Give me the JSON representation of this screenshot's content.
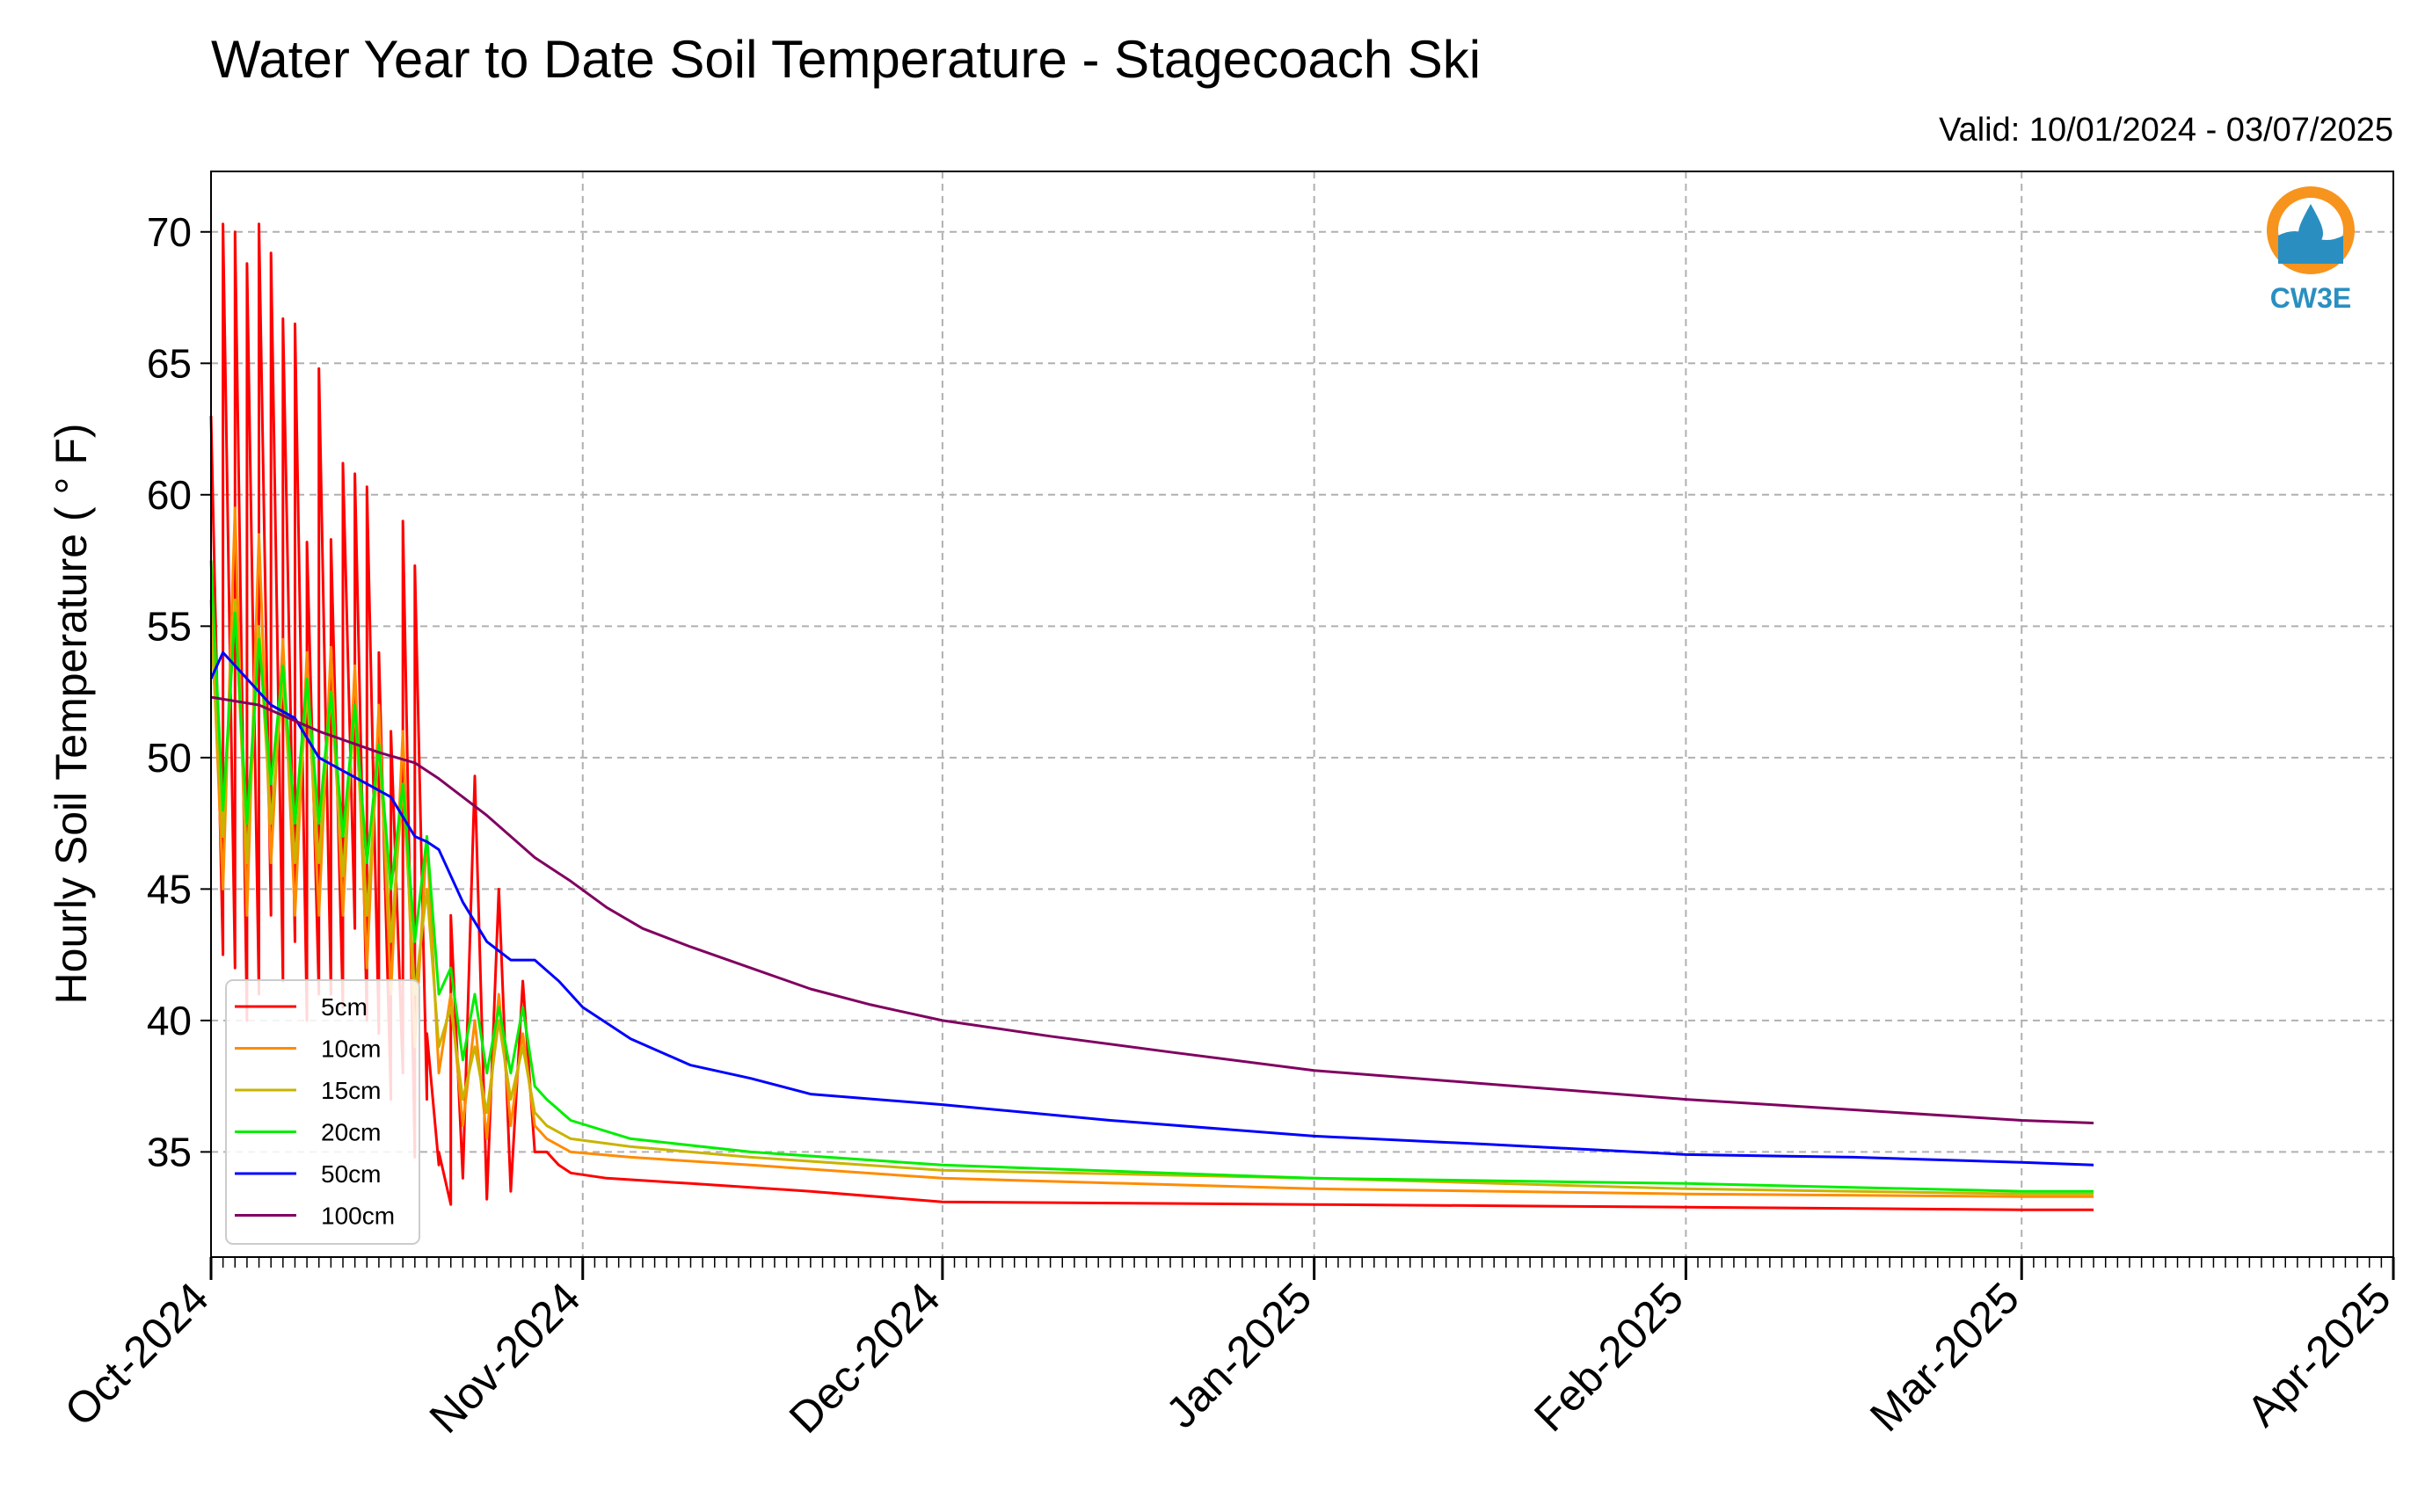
{
  "chart_data": {
    "type": "line",
    "title": "Water Year to Date Soil Temperature - Stagecoach Ski",
    "subtitle": "Valid: 10/01/2024 - 03/07/2025",
    "xlabel": "",
    "ylabel": "Hourly Soil Temperature ( ° F)",
    "xlim": [
      "2024-10-01",
      "2025-04-01"
    ],
    "ylim": [
      31,
      72.3
    ],
    "x_ticks": [
      "Oct-2024",
      "Nov-2024",
      "Dec-2024",
      "Jan-2025",
      "Feb-2025",
      "Mar-2025",
      "Apr-2025"
    ],
    "y_ticks": [
      35,
      40,
      45,
      50,
      55,
      60,
      65,
      70
    ],
    "grid": true,
    "legend_position": "lower-left",
    "series": [
      {
        "name": "5cm",
        "color": "#ff0000",
        "x": [
          "2024-10-01",
          "2024-10-02",
          "2024-10-02",
          "2024-10-03",
          "2024-10-03",
          "2024-10-04",
          "2024-10-04",
          "2024-10-05",
          "2024-10-05",
          "2024-10-06",
          "2024-10-06",
          "2024-10-07",
          "2024-10-07",
          "2024-10-08",
          "2024-10-08",
          "2024-10-09",
          "2024-10-09",
          "2024-10-10",
          "2024-10-10",
          "2024-10-11",
          "2024-10-11",
          "2024-10-12",
          "2024-10-12",
          "2024-10-13",
          "2024-10-13",
          "2024-10-14",
          "2024-10-14",
          "2024-10-15",
          "2024-10-15",
          "2024-10-16",
          "2024-10-16",
          "2024-10-17",
          "2024-10-17",
          "2024-10-18",
          "2024-10-18",
          "2024-10-19",
          "2024-10-19",
          "2024-10-20",
          "2024-10-20",
          "2024-10-21",
          "2024-10-21",
          "2024-10-22",
          "2024-10-23",
          "2024-10-24",
          "2024-10-25",
          "2024-10-26",
          "2024-10-27",
          "2024-10-28",
          "2024-10-29",
          "2024-10-30",
          "2024-10-31",
          "2024-11-03",
          "2024-11-10",
          "2024-11-20",
          "2024-12-01",
          "2025-01-01",
          "2025-02-01",
          "2025-03-01",
          "2025-03-07"
        ],
        "values": [
          63.0,
          42.5,
          70.3,
          42.0,
          70.0,
          40.0,
          68.8,
          41.0,
          70.3,
          44.0,
          69.2,
          41.5,
          66.7,
          43.0,
          66.5,
          40.0,
          58.2,
          41.0,
          64.8,
          41.0,
          58.3,
          40.5,
          61.2,
          43.5,
          60.8,
          40.0,
          60.3,
          39.5,
          54.0,
          37.0,
          51.0,
          38.0,
          59.0,
          34.8,
          57.3,
          37.0,
          39.5,
          34.5,
          35.0,
          33.0,
          44.0,
          34.0,
          49.3,
          33.2,
          45.0,
          33.5,
          41.5,
          35.0,
          35.0,
          34.5,
          34.2,
          34.0,
          33.8,
          33.5,
          33.1,
          33.0,
          32.9,
          32.8,
          32.8
        ]
      },
      {
        "name": "10cm",
        "color": "#ff8c00",
        "x": [
          "2024-10-01",
          "2024-10-02",
          "2024-10-03",
          "2024-10-04",
          "2024-10-05",
          "2024-10-06",
          "2024-10-07",
          "2024-10-08",
          "2024-10-09",
          "2024-10-10",
          "2024-10-11",
          "2024-10-12",
          "2024-10-13",
          "2024-10-14",
          "2024-10-15",
          "2024-10-16",
          "2024-10-17",
          "2024-10-18",
          "2024-10-19",
          "2024-10-20",
          "2024-10-21",
          "2024-10-22",
          "2024-10-23",
          "2024-10-24",
          "2024-10-25",
          "2024-10-26",
          "2024-10-27",
          "2024-10-28",
          "2024-10-29",
          "2024-10-31",
          "2024-11-05",
          "2024-11-15",
          "2024-12-01",
          "2025-01-01",
          "2025-02-01",
          "2025-03-01",
          "2025-03-07"
        ],
        "values": [
          56.0,
          45.0,
          59.5,
          44.0,
          58.5,
          46.0,
          54.5,
          44.0,
          54.0,
          44.0,
          54.2,
          44.0,
          53.5,
          42.0,
          52.0,
          41.0,
          51.0,
          39.0,
          47.0,
          38.0,
          41.0,
          36.0,
          40.0,
          35.5,
          41.0,
          36.0,
          39.5,
          36.0,
          35.5,
          35.0,
          34.8,
          34.5,
          34.0,
          33.6,
          33.4,
          33.3,
          33.3
        ]
      },
      {
        "name": "15cm",
        "color": "#c8b400",
        "x": [
          "2024-10-01",
          "2024-10-02",
          "2024-10-03",
          "2024-10-04",
          "2024-10-05",
          "2024-10-06",
          "2024-10-07",
          "2024-10-08",
          "2024-10-09",
          "2024-10-10",
          "2024-10-11",
          "2024-10-12",
          "2024-10-13",
          "2024-10-14",
          "2024-10-15",
          "2024-10-16",
          "2024-10-17",
          "2024-10-18",
          "2024-10-19",
          "2024-10-20",
          "2024-10-21",
          "2024-10-22",
          "2024-10-23",
          "2024-10-24",
          "2024-10-25",
          "2024-10-26",
          "2024-10-27",
          "2024-10-28",
          "2024-10-29",
          "2024-10-31",
          "2024-11-05",
          "2024-11-15",
          "2024-12-01",
          "2025-01-01",
          "2025-02-01",
          "2025-03-01",
          "2025-03-07"
        ],
        "values": [
          55.0,
          47.0,
          56.0,
          46.0,
          55.0,
          47.5,
          53.0,
          46.0,
          52.5,
          46.0,
          52.5,
          45.5,
          52.0,
          44.0,
          50.5,
          43.0,
          49.0,
          41.0,
          45.0,
          39.0,
          40.5,
          37.0,
          39.0,
          36.5,
          40.0,
          37.0,
          39.0,
          36.5,
          36.0,
          35.5,
          35.2,
          34.8,
          34.3,
          34.0,
          33.6,
          33.4,
          33.4
        ]
      },
      {
        "name": "20cm",
        "color": "#00ee00",
        "x": [
          "2024-10-01",
          "2024-10-02",
          "2024-10-03",
          "2024-10-04",
          "2024-10-05",
          "2024-10-06",
          "2024-10-07",
          "2024-10-08",
          "2024-10-09",
          "2024-10-10",
          "2024-10-11",
          "2024-10-12",
          "2024-10-13",
          "2024-10-14",
          "2024-10-15",
          "2024-10-16",
          "2024-10-17",
          "2024-10-18",
          "2024-10-19",
          "2024-10-20",
          "2024-10-21",
          "2024-10-22",
          "2024-10-23",
          "2024-10-24",
          "2024-10-25",
          "2024-10-26",
          "2024-10-27",
          "2024-10-28",
          "2024-10-29",
          "2024-10-31",
          "2024-11-05",
          "2024-11-15",
          "2024-12-01",
          "2025-01-01",
          "2025-02-01",
          "2025-03-01",
          "2025-03-07"
        ],
        "values": [
          57.5,
          48.0,
          55.5,
          47.5,
          54.5,
          49.0,
          53.5,
          47.5,
          53.0,
          47.5,
          52.5,
          47.0,
          52.0,
          46.0,
          50.5,
          45.0,
          49.0,
          43.0,
          47.0,
          41.0,
          42.0,
          38.5,
          41.0,
          38.0,
          40.5,
          38.0,
          40.5,
          37.5,
          37.0,
          36.2,
          35.5,
          35.0,
          34.5,
          34.0,
          33.8,
          33.5,
          33.5
        ]
      },
      {
        "name": "50cm",
        "color": "#0000ff",
        "x": [
          "2024-10-01",
          "2024-10-02",
          "2024-10-04",
          "2024-10-06",
          "2024-10-08",
          "2024-10-10",
          "2024-10-12",
          "2024-10-14",
          "2024-10-16",
          "2024-10-18",
          "2024-10-19",
          "2024-10-20",
          "2024-10-22",
          "2024-10-24",
          "2024-10-26",
          "2024-10-28",
          "2024-10-30",
          "2024-11-01",
          "2024-11-05",
          "2024-11-10",
          "2024-11-15",
          "2024-11-20",
          "2024-12-01",
          "2024-12-15",
          "2025-01-01",
          "2025-01-15",
          "2025-02-01",
          "2025-02-15",
          "2025-03-01",
          "2025-03-07"
        ],
        "values": [
          53.0,
          54.0,
          53.0,
          52.0,
          51.5,
          50.0,
          49.5,
          49.0,
          48.5,
          47.0,
          46.8,
          46.5,
          44.5,
          43.0,
          42.3,
          42.3,
          41.5,
          40.5,
          39.3,
          38.3,
          37.8,
          37.2,
          36.8,
          36.2,
          35.6,
          35.3,
          34.9,
          34.8,
          34.6,
          34.5
        ]
      },
      {
        "name": "100cm",
        "color": "#800060",
        "x": [
          "2024-10-01",
          "2024-10-05",
          "2024-10-10",
          "2024-10-15",
          "2024-10-18",
          "2024-10-20",
          "2024-10-22",
          "2024-10-24",
          "2024-10-26",
          "2024-10-28",
          "2024-10-31",
          "2024-11-03",
          "2024-11-06",
          "2024-11-10",
          "2024-11-15",
          "2024-11-20",
          "2024-11-25",
          "2024-12-01",
          "2024-12-10",
          "2024-12-20",
          "2025-01-01",
          "2025-01-15",
          "2025-02-01",
          "2025-02-15",
          "2025-03-01",
          "2025-03-07"
        ],
        "values": [
          52.3,
          52.0,
          51.0,
          50.2,
          49.8,
          49.2,
          48.5,
          47.8,
          47.0,
          46.2,
          45.3,
          44.3,
          43.5,
          42.8,
          42.0,
          41.2,
          40.6,
          40.0,
          39.4,
          38.8,
          38.1,
          37.6,
          37.0,
          36.6,
          36.2,
          36.1
        ]
      }
    ]
  },
  "logo": {
    "text": "CW3E",
    "colors": {
      "ring": "#f7941d",
      "water": "#2a8fc0",
      "text": "#2a8fc0"
    }
  }
}
